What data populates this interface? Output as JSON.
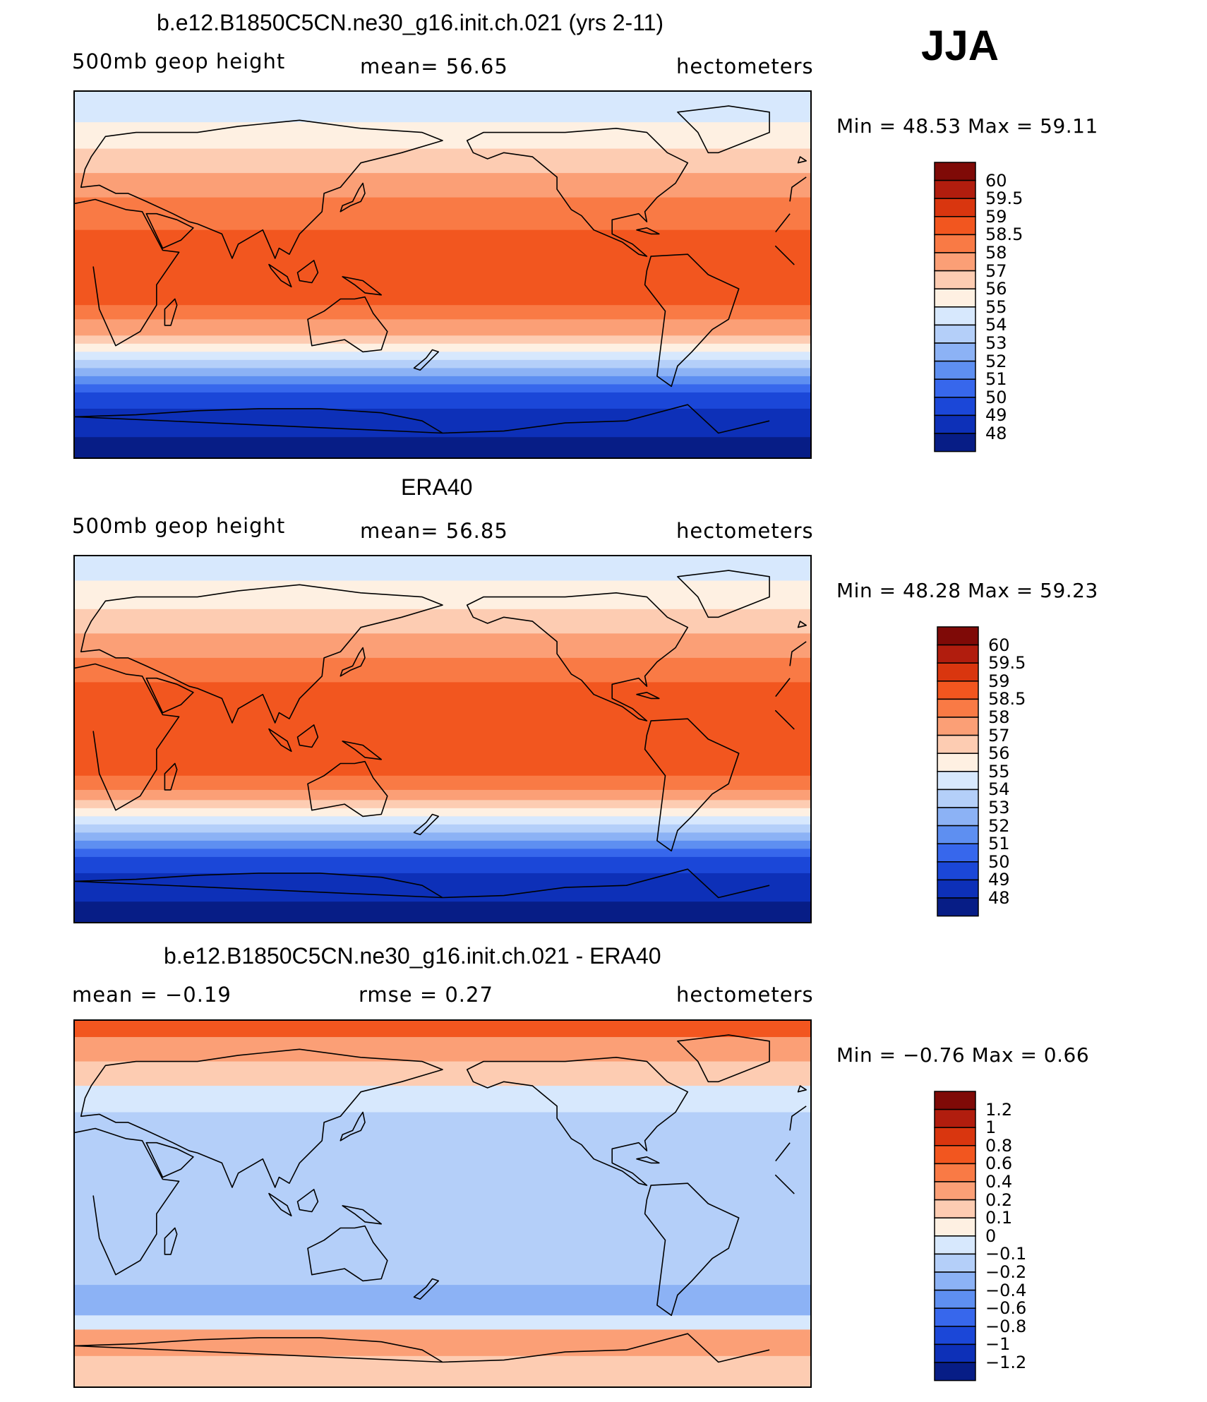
{
  "season": "JJA",
  "chart_data": [
    {
      "type": "heatmap",
      "title": "b.e12.B1850C5CN.ne30_g16.init.ch.021 (yrs 2-11)",
      "left_label": "500mb geop height",
      "mean_label": "mean=   56.65",
      "units": "hectometers",
      "min_max": "Min =   48.53 Max =   59.11",
      "min": 48.53,
      "max": 59.11,
      "mean": 56.65,
      "colorbar_levels": [
        "60",
        "59.5",
        "59",
        "58.5",
        "58",
        "57",
        "56",
        "55",
        "54",
        "53",
        "52",
        "51",
        "50",
        "49",
        "48"
      ],
      "colors": [
        "#7f0a07",
        "#b11d0e",
        "#d9360f",
        "#f2561f",
        "#f97a45",
        "#fb9f76",
        "#fdccb2",
        "#fef0e2",
        "#d7e8fd",
        "#b4cff9",
        "#8cb2f5",
        "#5e8ff1",
        "#3767ec",
        "#1b47d8",
        "#0d30b8",
        "#071d86"
      ],
      "bands_lat_to_color": [
        [
          90,
          8
        ],
        [
          75,
          7
        ],
        [
          62,
          6
        ],
        [
          50,
          5
        ],
        [
          38,
          4
        ],
        [
          22,
          3
        ],
        [
          -15,
          4
        ],
        [
          -22,
          5
        ],
        [
          -30,
          6
        ],
        [
          -34,
          7
        ],
        [
          -38,
          8
        ],
        [
          -42,
          9
        ],
        [
          -46,
          10
        ],
        [
          -50,
          11
        ],
        [
          -54,
          12
        ],
        [
          -58,
          13
        ],
        [
          -66,
          14
        ],
        [
          -80,
          15
        ]
      ]
    },
    {
      "type": "heatmap",
      "title": "ERA40",
      "left_label": "500mb geop height",
      "mean_label": "mean=   56.85",
      "units": "hectometers",
      "min_max": "Min =   48.28 Max =   59.23",
      "min": 48.28,
      "max": 59.23,
      "mean": 56.85,
      "colorbar_levels": [
        "60",
        "59.5",
        "59",
        "58.5",
        "58",
        "57",
        "56",
        "55",
        "54",
        "53",
        "52",
        "51",
        "50",
        "49",
        "48"
      ],
      "colors": [
        "#7f0a07",
        "#b11d0e",
        "#d9360f",
        "#f2561f",
        "#f97a45",
        "#fb9f76",
        "#fdccb2",
        "#fef0e2",
        "#d7e8fd",
        "#b4cff9",
        "#8cb2f5",
        "#5e8ff1",
        "#3767ec",
        "#1b47d8",
        "#0d30b8",
        "#071d86"
      ],
      "bands_lat_to_color": [
        [
          90,
          8
        ],
        [
          78,
          7
        ],
        [
          64,
          6
        ],
        [
          52,
          5
        ],
        [
          40,
          4
        ],
        [
          28,
          3
        ],
        [
          -18,
          4
        ],
        [
          -25,
          5
        ],
        [
          -30,
          6
        ],
        [
          -34,
          7
        ],
        [
          -38,
          8
        ],
        [
          -42,
          9
        ],
        [
          -46,
          10
        ],
        [
          -50,
          11
        ],
        [
          -54,
          12
        ],
        [
          -58,
          13
        ],
        [
          -66,
          14
        ],
        [
          -80,
          15
        ]
      ]
    },
    {
      "type": "heatmap",
      "title": "b.e12.B1850C5CN.ne30_g16.init.ch.021 - ERA40",
      "left_label": "mean =   −0.19",
      "mean_label": "rmse =    0.27",
      "units": "hectometers",
      "min_max": "Min =   −0.76 Max =    0.66",
      "min": -0.76,
      "max": 0.66,
      "mean": -0.19,
      "rmse": 0.27,
      "colorbar_levels": [
        "1.2",
        "1",
        "0.8",
        "0.6",
        "0.4",
        "0.2",
        "0.1",
        "0",
        "−0.1",
        "−0.2",
        "−0.4",
        "−0.6",
        "−0.8",
        "−1",
        "−1.2"
      ],
      "colors": [
        "#7f0a07",
        "#b11d0e",
        "#d9360f",
        "#f2561f",
        "#f97a45",
        "#fb9f76",
        "#fdccb2",
        "#fef0e2",
        "#d7e8fd",
        "#b4cff9",
        "#8cb2f5",
        "#5e8ff1",
        "#3767ec",
        "#1b47d8",
        "#0d30b8",
        "#071d86"
      ],
      "bands_lat_to_color": [
        [
          90,
          3
        ],
        [
          82,
          5
        ],
        [
          70,
          6
        ],
        [
          58,
          8
        ],
        [
          45,
          9
        ],
        [
          -40,
          10
        ],
        [
          -55,
          8
        ],
        [
          -62,
          5
        ],
        [
          -75,
          6
        ]
      ]
    }
  ]
}
